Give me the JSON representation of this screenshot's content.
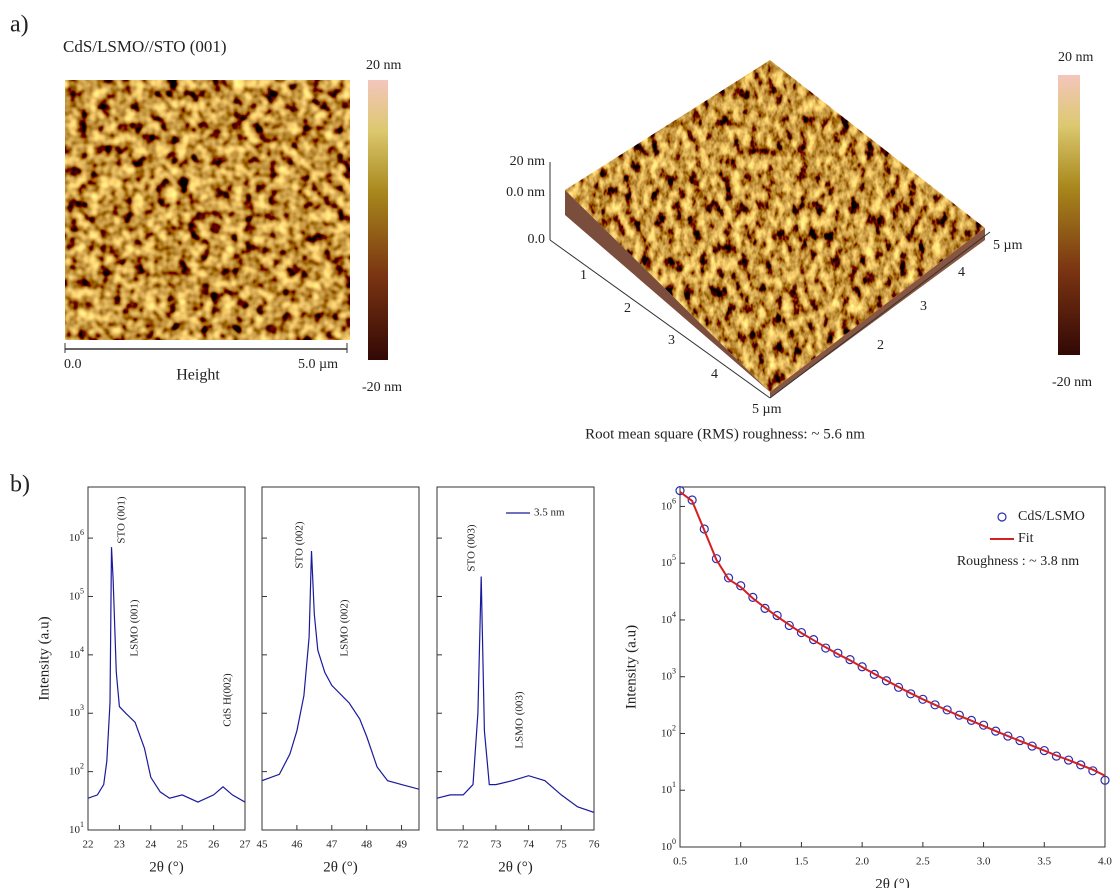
{
  "panel_labels": [
    "a)",
    "b)"
  ],
  "afm_2d": {
    "title": "CdS/LSMO//STO (001)",
    "scale_start": "0.0",
    "scale_end": "5.0 µm",
    "label": "Height",
    "colorbar_max": "20  nm",
    "colorbar_min": "-20  nm"
  },
  "afm_3d": {
    "z_labels": [
      "20 nm",
      "0.0 nm",
      "0.0"
    ],
    "left_axis_labels": [
      "1",
      "2",
      "3",
      "4",
      "5 µm"
    ],
    "right_axis_labels": [
      "2",
      "3",
      "4",
      "5 µm"
    ],
    "colorbar_max": "20  nm",
    "colorbar_min": "-20  nm",
    "caption": "Root mean square (RMS) roughness:  ~ 5.6 nm"
  },
  "chart_data": [
    {
      "type": "line",
      "xlabel": "2θ (°)",
      "ylabel": "Intensity (a.u)",
      "log_y": true,
      "xlim": [
        22,
        27
      ],
      "xticks": [
        22,
        23,
        24,
        25,
        26,
        27
      ],
      "ylim": [
        10,
        7500000
      ],
      "yticks": [
        {
          "value": 10,
          "label": "10",
          "exp": "1"
        },
        {
          "value": 100,
          "label": "10",
          "exp": "2"
        },
        {
          "value": 1000,
          "label": "10",
          "exp": "3"
        },
        {
          "value": 10000,
          "label": "10",
          "exp": "4"
        },
        {
          "value": 100000,
          "label": "10",
          "exp": "5"
        },
        {
          "value": 1000000,
          "label": "10",
          "exp": "6"
        }
      ],
      "annotations": [
        {
          "text": "STO (001)",
          "color": "#222"
        },
        {
          "text": "LSMO (001)",
          "color": "#222"
        },
        {
          "text": "CdS  H(002)",
          "color": "#2a2ab8"
        }
      ],
      "series": [
        {
          "color": "#1a1a9c",
          "x": [
            22.0,
            22.3,
            22.5,
            22.6,
            22.7,
            22.75,
            22.8,
            22.9,
            23.0,
            23.2,
            23.5,
            23.8,
            24.0,
            24.3,
            24.6,
            25.0,
            25.5,
            26.0,
            26.3,
            26.6,
            27.0
          ],
          "values": [
            35,
            40,
            60,
            150,
            1500,
            700000,
            200000,
            5000,
            1300,
            1000,
            700,
            250,
            80,
            45,
            35,
            40,
            30,
            40,
            55,
            40,
            30
          ]
        }
      ]
    },
    {
      "type": "line",
      "xlabel": "2θ (°)",
      "log_y": true,
      "xlim": [
        45,
        49.5
      ],
      "xticks": [
        45,
        46,
        47,
        48,
        49
      ],
      "ylim": [
        10,
        7500000
      ],
      "annotations": [
        {
          "text": "STO (002)",
          "color": "#222"
        },
        {
          "text": "LSMO (002)",
          "color": "#222"
        }
      ],
      "series": [
        {
          "color": "#1a1a9c",
          "x": [
            45.0,
            45.5,
            45.8,
            46.0,
            46.2,
            46.35,
            46.42,
            46.5,
            46.6,
            46.8,
            47.0,
            47.5,
            47.8,
            48.0,
            48.3,
            48.6,
            49.0,
            49.5
          ],
          "values": [
            70,
            90,
            200,
            500,
            2000,
            20000,
            600000,
            50000,
            12000,
            5000,
            3000,
            1500,
            800,
            400,
            120,
            70,
            60,
            50
          ]
        }
      ]
    },
    {
      "type": "line",
      "xlabel": "2θ (°)",
      "log_y": true,
      "xlim": [
        71.2,
        76
      ],
      "xticks": [
        72,
        73,
        74,
        75,
        76
      ],
      "ylim": [
        10,
        7500000
      ],
      "annotations": [
        {
          "text": "STO (003)",
          "color": "#222"
        },
        {
          "text": "LSMO (003)",
          "color": "#222"
        }
      ],
      "series": [
        {
          "name": "3.5 nm",
          "color": "#1a1a9c",
          "x": [
            71.2,
            71.6,
            72.0,
            72.3,
            72.45,
            72.55,
            72.65,
            72.8,
            73.0,
            73.5,
            74.0,
            74.5,
            75.0,
            75.5,
            76.0
          ],
          "values": [
            35,
            40,
            40,
            60,
            1000,
            220000,
            500,
            60,
            60,
            70,
            85,
            70,
            40,
            25,
            20
          ]
        }
      ]
    },
    {
      "type": "scatter",
      "xlabel": "2θ (°)",
      "ylabel": "Intensity (a.u)",
      "log_y": true,
      "xlim": [
        0.5,
        4.0
      ],
      "xticks": [
        0.5,
        {
          "value": 1.0,
          "label": "1.0"
        },
        1.5,
        {
          "value": 2.0,
          "label": "2.0"
        },
        2.5,
        {
          "value": 3.0,
          "label": "3.0"
        },
        3.5,
        {
          "value": 4.0,
          "label": "4.0"
        }
      ],
      "ylim": [
        1,
        2200000
      ],
      "yticks": [
        {
          "value": 1,
          "label": "10",
          "exp": "0"
        },
        {
          "value": 10,
          "label": "10",
          "exp": "1"
        },
        {
          "value": 100,
          "label": "10",
          "exp": "2"
        },
        {
          "value": 1000,
          "label": "10",
          "exp": "3"
        },
        {
          "value": 10000,
          "label": "10",
          "exp": "4"
        },
        {
          "value": 100000,
          "label": "10",
          "exp": "5"
        },
        {
          "value": 1000000,
          "label": "10",
          "exp": "6"
        }
      ],
      "annotations": [
        {
          "text": "Roughness :  ~ 3.8 nm",
          "color": "#222"
        }
      ],
      "series": [
        {
          "name": "CdS/LSMO",
          "mode": "markers",
          "color": "#2b2bb0",
          "x": [
            0.5,
            0.6,
            0.7,
            0.8,
            0.9,
            1.0,
            1.1,
            1.2,
            1.3,
            1.4,
            1.5,
            1.6,
            1.7,
            1.8,
            1.9,
            2.0,
            2.1,
            2.2,
            2.3,
            2.4,
            2.5,
            2.6,
            2.7,
            2.8,
            2.9,
            3.0,
            3.1,
            3.2,
            3.3,
            3.4,
            3.5,
            3.6,
            3.7,
            3.8,
            3.9,
            4.0
          ],
          "values": [
            1900000,
            1300000,
            400000,
            120000,
            55000,
            40000,
            25000,
            16000,
            12000,
            8000,
            6000,
            4500,
            3200,
            2600,
            2000,
            1500,
            1100,
            850,
            650,
            500,
            400,
            320,
            260,
            210,
            170,
            140,
            110,
            90,
            75,
            60,
            50,
            40,
            34,
            28,
            22,
            15
          ]
        },
        {
          "name": "Fit",
          "mode": "line",
          "color": "#d42020",
          "x": [
            0.5,
            0.6,
            0.7,
            0.8,
            0.9,
            1.0,
            1.1,
            1.2,
            1.3,
            1.4,
            1.5,
            1.6,
            1.7,
            1.8,
            1.9,
            2.0,
            2.1,
            2.2,
            2.3,
            2.4,
            2.5,
            2.6,
            2.7,
            2.8,
            2.9,
            3.0,
            3.1,
            3.2,
            3.3,
            3.4,
            3.5,
            3.6,
            3.7,
            3.8,
            3.9,
            4.0
          ],
          "values": [
            1800000,
            1250000,
            380000,
            115000,
            52000,
            38000,
            24000,
            16500,
            11500,
            8200,
            5900,
            4400,
            3300,
            2500,
            1950,
            1480,
            1120,
            860,
            660,
            510,
            400,
            320,
            255,
            205,
            168,
            136,
            110,
            90,
            74,
            61,
            50,
            41,
            34,
            28,
            23,
            18
          ]
        }
      ]
    }
  ]
}
